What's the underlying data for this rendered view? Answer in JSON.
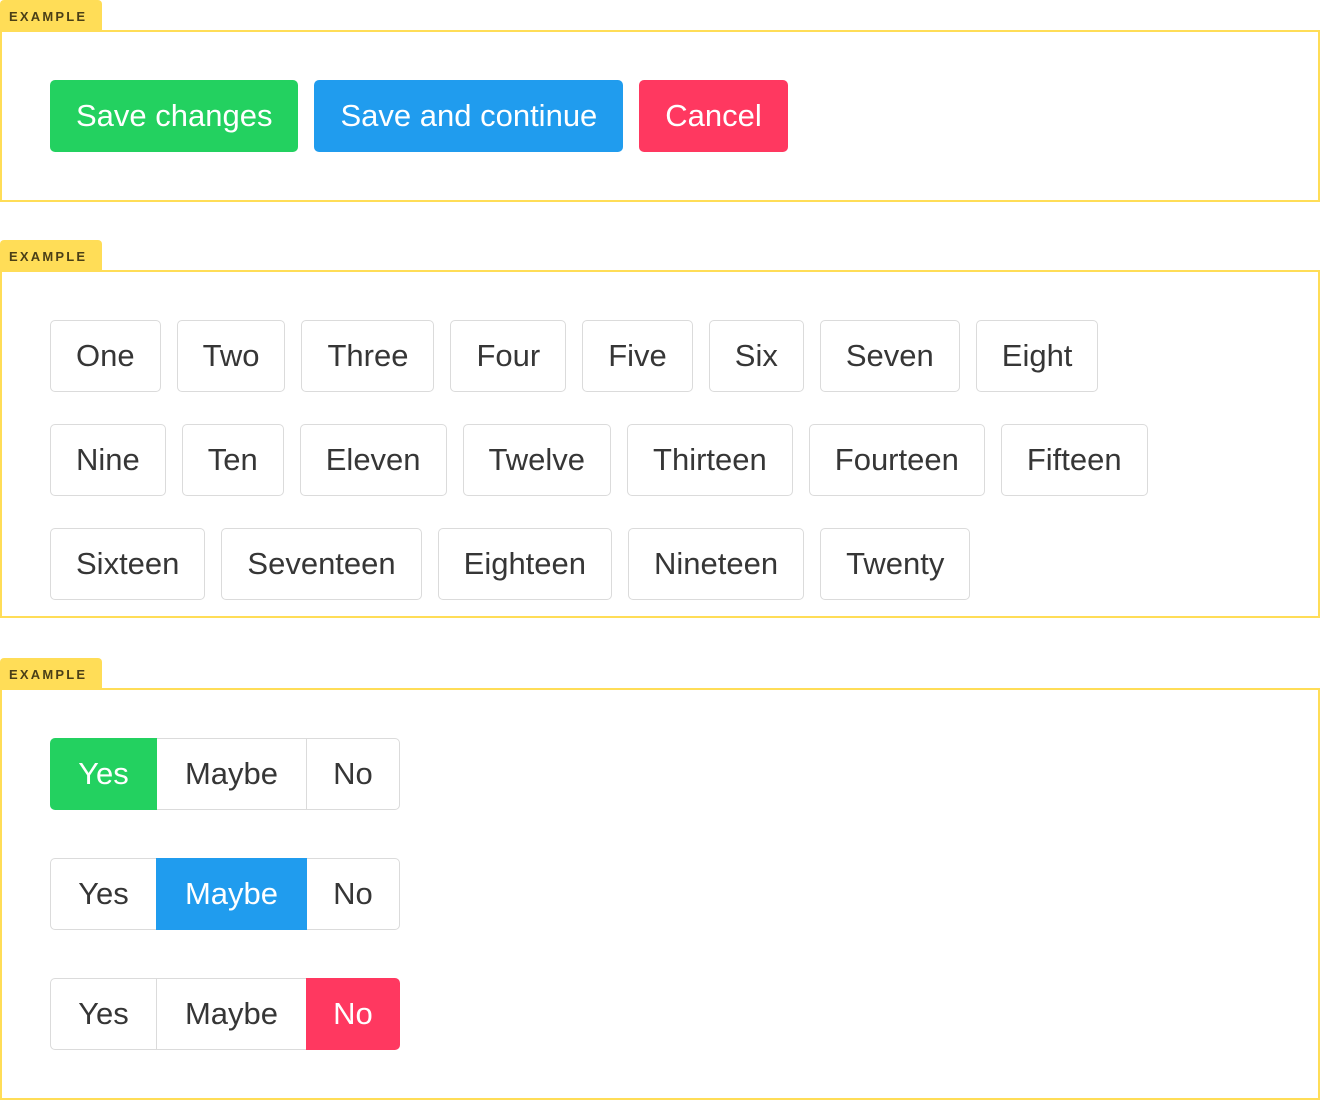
{
  "section_label": "EXAMPLE",
  "colors": {
    "success": "#23d160",
    "info": "#209cee",
    "danger": "#ff3860",
    "example_tab": "#ffdd57"
  },
  "actions": {
    "save": "Save changes",
    "save_continue": "Save and continue",
    "cancel": "Cancel"
  },
  "tags": [
    "One",
    "Two",
    "Three",
    "Four",
    "Five",
    "Six",
    "Seven",
    "Eight",
    "Nine",
    "Ten",
    "Eleven",
    "Twelve",
    "Thirteen",
    "Fourteen",
    "Fifteen",
    "Sixteen",
    "Seventeen",
    "Eighteen",
    "Nineteen",
    "Twenty"
  ],
  "segmented_groups": [
    {
      "options": [
        "Yes",
        "Maybe",
        "No"
      ],
      "selected": "Yes",
      "color": "#23d160"
    },
    {
      "options": [
        "Yes",
        "Maybe",
        "No"
      ],
      "selected": "Maybe",
      "color": "#209cee"
    },
    {
      "options": [
        "Yes",
        "Maybe",
        "No"
      ],
      "selected": "No",
      "color": "#ff3860"
    }
  ]
}
